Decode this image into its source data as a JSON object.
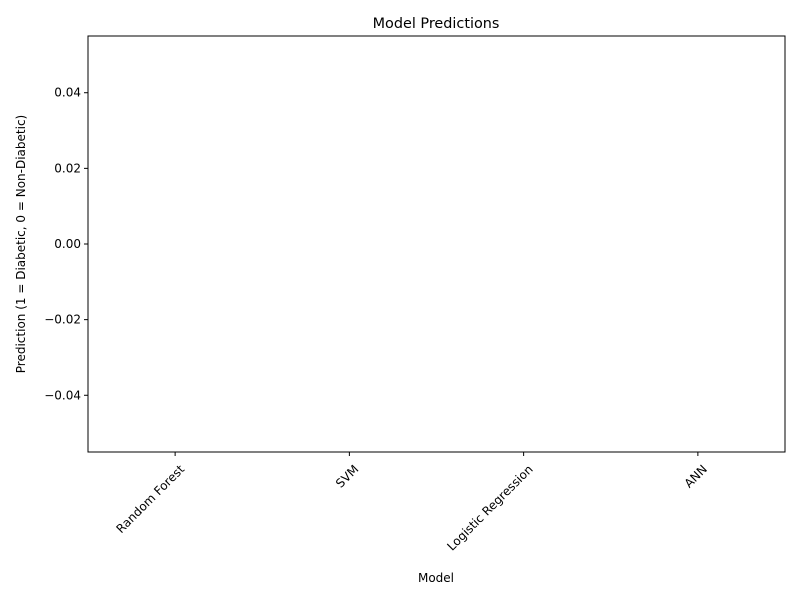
{
  "chart_data": {
    "type": "bar",
    "title": "Model Predictions",
    "xlabel": "Model",
    "ylabel": "Prediction (1 = Diabetic, 0 = Non-Diabetic)",
    "categories": [
      "Random Forest",
      "SVM",
      "Logistic Regression",
      "ANN"
    ],
    "values": [
      0,
      0,
      0,
      0
    ],
    "ylim": [
      -0.055,
      0.055
    ],
    "yticks": [
      0.04,
      0.02,
      0.0,
      -0.02,
      -0.04
    ],
    "ytick_labels": [
      "0.04",
      "0.02",
      "0.00",
      "−0.02",
      "−0.04"
    ],
    "xtick_rotation_deg": 45,
    "grid": false,
    "legend": "none",
    "colors": {
      "frame": "#000000",
      "bar": "#1f77b4"
    }
  }
}
